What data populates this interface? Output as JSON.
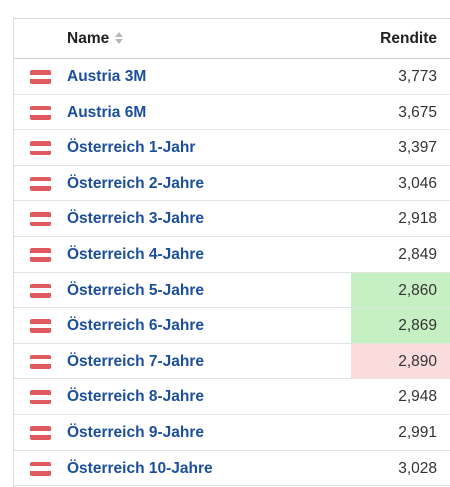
{
  "header": {
    "name_label": "Name",
    "yield_label": "Rendite",
    "sort_icon": "sort-updown-icon"
  },
  "colors": {
    "link": "#1b4f9c",
    "highlight_up": "#c6f0c4",
    "highlight_down": "#fbdcdc",
    "flag_red": "#e05a60"
  },
  "rows": [
    {
      "name": "Austria 3M",
      "yield": "3,773",
      "highlight": ""
    },
    {
      "name": "Austria 6M",
      "yield": "3,675",
      "highlight": ""
    },
    {
      "name": "Österreich 1-Jahr",
      "yield": "3,397",
      "highlight": ""
    },
    {
      "name": "Österreich 2-Jahre",
      "yield": "3,046",
      "highlight": ""
    },
    {
      "name": "Österreich 3-Jahre",
      "yield": "2,918",
      "highlight": ""
    },
    {
      "name": "Österreich 4-Jahre",
      "yield": "2,849",
      "highlight": ""
    },
    {
      "name": "Österreich 5-Jahre",
      "yield": "2,860",
      "highlight": "up"
    },
    {
      "name": "Österreich 6-Jahre",
      "yield": "2,869",
      "highlight": "up"
    },
    {
      "name": "Österreich 7-Jahre",
      "yield": "2,890",
      "highlight": "down"
    },
    {
      "name": "Österreich 8-Jahre",
      "yield": "2,948",
      "highlight": ""
    },
    {
      "name": "Österreich 9-Jahre",
      "yield": "2,991",
      "highlight": ""
    },
    {
      "name": "Österreich 10-Jahre",
      "yield": "3,028",
      "highlight": ""
    }
  ]
}
